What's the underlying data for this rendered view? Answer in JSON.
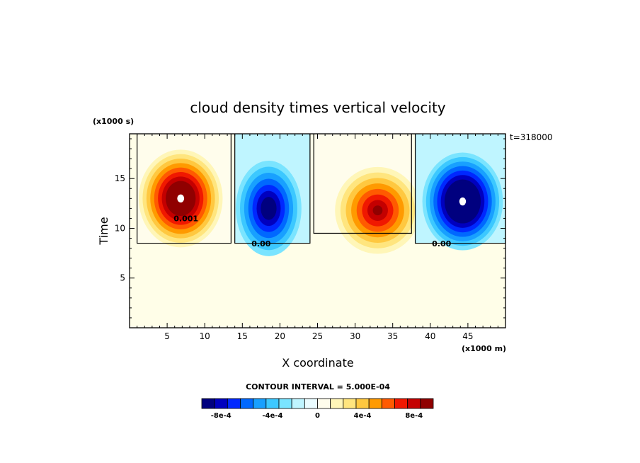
{
  "chart_data": {
    "type": "heatmap",
    "title": "cloud density times vertical velocity",
    "xlabel": "X coordinate",
    "ylabel": "Time",
    "x_units": "(x1000 m)",
    "y_units": "(x1000 s)",
    "time_stamp": "t=318000",
    "xlim": [
      0,
      50
    ],
    "ylim": [
      0,
      19.5
    ],
    "xticks": [
      "5",
      "10",
      "15",
      "20",
      "25",
      "30",
      "35",
      "40",
      "45"
    ],
    "yticks": [
      "5",
      "10",
      "15"
    ],
    "contour_interval_label": "CONTOUR INTERVAL = 5.000E-04",
    "contour_labels": [
      "0.001",
      "0.00",
      "0.00"
    ],
    "colorbar": {
      "ticks": [
        "-8e-4",
        "-4e-4",
        "0",
        "4e-4",
        "8e-4"
      ],
      "colors": [
        "#00007f",
        "#0000bf",
        "#0028ff",
        "#0068ff",
        "#18a0ff",
        "#3cc8ff",
        "#7ae4ff",
        "#bff5ff",
        "#eafcff",
        "#fffdec",
        "#fff6b8",
        "#ffe57e",
        "#ffc840",
        "#ff9a00",
        "#ff5a00",
        "#f01800",
        "#c40000",
        "#900000"
      ]
    },
    "cells": [
      {
        "x": [
          1,
          13.5
        ],
        "y": [
          8.5,
          19.5
        ],
        "sign": "positive",
        "peak_at": [
          6.8,
          13
        ],
        "peak": 0.0011
      },
      {
        "x": [
          14,
          24
        ],
        "y": [
          8.5,
          19.5
        ],
        "sign": "negative",
        "peak_at": [
          18.5,
          12
        ],
        "peak": -0.0008
      },
      {
        "x": [
          24.5,
          37.5
        ],
        "y": [
          9.5,
          19.5
        ],
        "sign": "positive",
        "peak_at": [
          33,
          11.8
        ],
        "peak": 0.0008
      },
      {
        "x": [
          38,
          50
        ],
        "y": [
          8.5,
          19.5
        ],
        "sign": "negative",
        "peak_at": [
          44.3,
          12.7
        ],
        "peak": -0.0011
      }
    ]
  }
}
